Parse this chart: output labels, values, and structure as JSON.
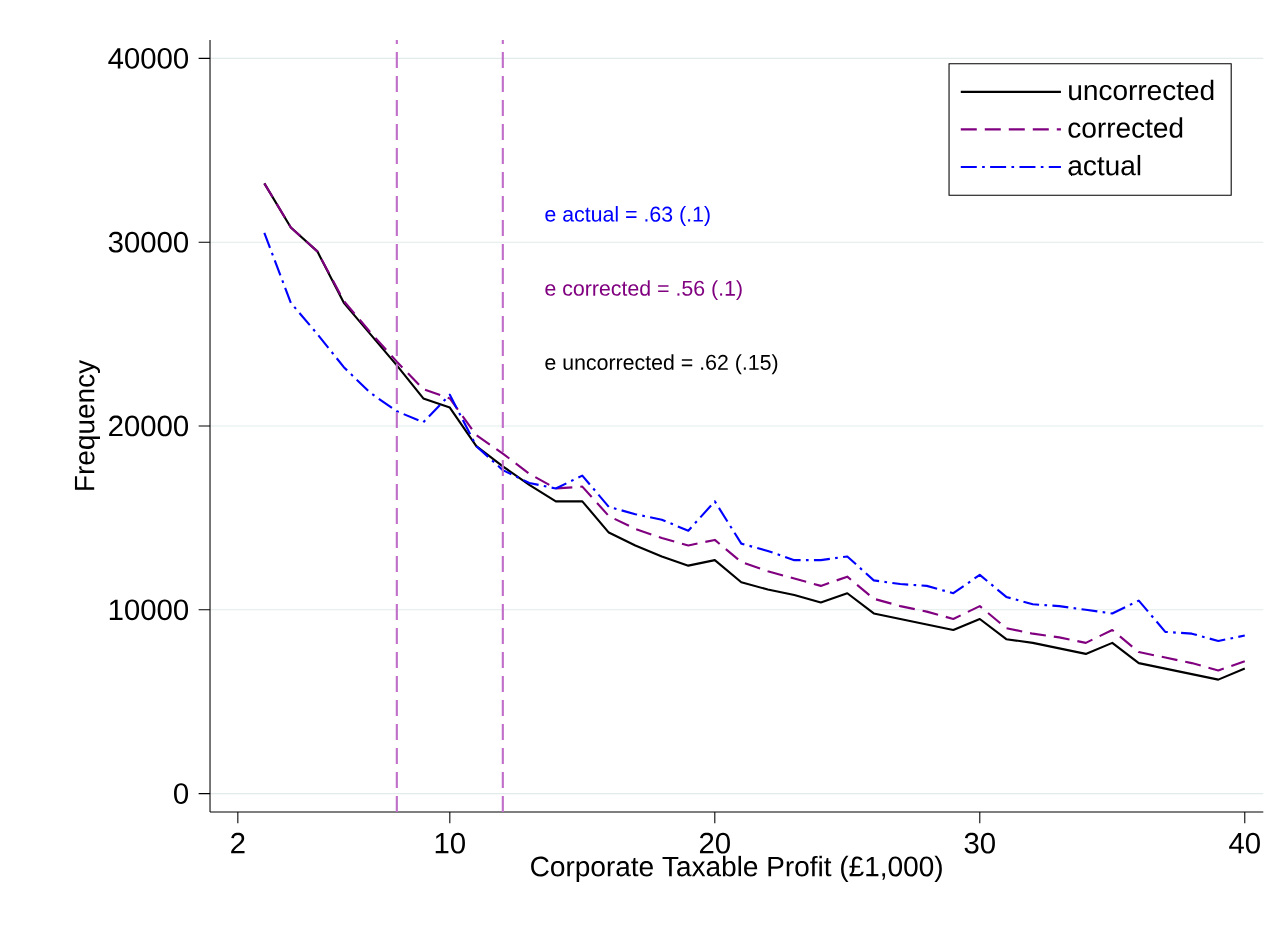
{
  "chart_data": {
    "type": "line",
    "xlabel": "Corporate Taxable Profit (£1,000)",
    "ylabel": "Frequency",
    "x": [
      3,
      4,
      5,
      6,
      7,
      8,
      9,
      10,
      11,
      12,
      13,
      14,
      15,
      16,
      17,
      18,
      19,
      20,
      21,
      22,
      23,
      24,
      25,
      26,
      27,
      28,
      29,
      30,
      31,
      32,
      33,
      34,
      35,
      36,
      37,
      38,
      39,
      40
    ],
    "series": [
      {
        "name": "uncorrected",
        "color": "#000000",
        "line_style": "solid",
        "values": [
          33200,
          30800,
          29500,
          26700,
          25000,
          23300,
          21500,
          21000,
          18900,
          17800,
          16800,
          15900,
          15900,
          14200,
          13500,
          12900,
          12400,
          12700,
          11500,
          11100,
          10800,
          10400,
          10900,
          9800,
          9500,
          9200,
          8900,
          9500,
          8400,
          8200,
          7900,
          7600,
          8200,
          7100,
          6800,
          6500,
          6200,
          6800
        ]
      },
      {
        "name": "corrected",
        "color": "#800080",
        "line_style": "dashed",
        "values": [
          33200,
          30800,
          29500,
          26800,
          25100,
          23500,
          22000,
          21500,
          19500,
          18500,
          17400,
          16600,
          16700,
          15100,
          14400,
          13900,
          13500,
          13800,
          12600,
          12100,
          11700,
          11300,
          11800,
          10600,
          10200,
          9900,
          9500,
          10200,
          9000,
          8700,
          8500,
          8200,
          8900,
          7700,
          7400,
          7100,
          6700,
          7200
        ]
      },
      {
        "name": "actual",
        "color": "#0000ff",
        "line_style": "dashdot",
        "values": [
          30500,
          26700,
          25000,
          23200,
          21800,
          20800,
          20200,
          21700,
          18900,
          17600,
          16900,
          16600,
          17300,
          15600,
          15200,
          14900,
          14300,
          15900,
          13600,
          13200,
          12700,
          12700,
          12900,
          11600,
          11400,
          11300,
          10900,
          11900,
          10700,
          10300,
          10200,
          10000,
          9800,
          10500,
          8800,
          8700,
          8300,
          8600
        ]
      }
    ],
    "annotations": [
      "e actual = .63 (.1)",
      "e corrected = .56 (.1)",
      "e uncorrected = .62 (.15)"
    ],
    "ref_lines": [
      {
        "axis": "x",
        "value": 8,
        "color": "#c070c8",
        "line_style": "dashed"
      },
      {
        "axis": "x",
        "value": 12,
        "color": "#c070c8",
        "line_style": "dashed"
      }
    ],
    "xlim": [
      0.95,
      40.7
    ],
    "ylim": [
      -1000,
      41000
    ],
    "xticks": [
      2,
      10,
      20,
      30,
      40
    ],
    "yticks": [
      0,
      10000,
      20000,
      30000,
      40000
    ],
    "grid": "y",
    "legend": "top right",
    "marker": "none"
  }
}
